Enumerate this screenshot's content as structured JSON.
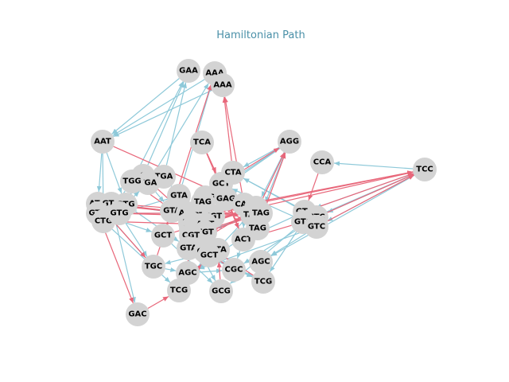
{
  "title": "Hamiltonian Path",
  "colors": {
    "edge_blue": "#8ec9d9",
    "edge_red": "#e8677a",
    "node": "#d3d3d3"
  },
  "nodes": [
    "GAA",
    "AAA",
    "AAA",
    "AAT",
    "TCA",
    "AGG",
    "CCA",
    "TCC",
    "TGA",
    "TGA",
    "TGA",
    "GCT",
    "CTA",
    "ATG",
    "GTG",
    "GTG",
    "TGG",
    "GTA",
    "GAG",
    "GAG",
    "TAG",
    "CAG",
    "CAG",
    "GTC",
    "CTC",
    "GTG",
    "CTG",
    "GTG",
    "GTA",
    "AGT",
    "CGT",
    "CGT",
    "TAG",
    "TAG",
    "GTC",
    "GTC",
    "AGT",
    "AGT",
    "AGT",
    "TGT",
    "ACT",
    "TAG",
    "GCT",
    "CGT",
    "GTA",
    "CTA",
    "GTA",
    "GCT",
    "AGC",
    "TGC",
    "AGC",
    "CGC",
    "TCG",
    "TCG",
    "GCG",
    "GAC"
  ]
}
